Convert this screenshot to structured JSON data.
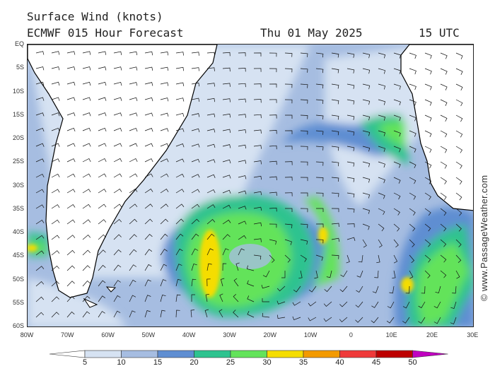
{
  "header": {
    "title": "Surface Wind (knots)",
    "model": "ECMWF 015 Hour Forecast",
    "date": "Thu 01 May 2025",
    "time": "15 UTC"
  },
  "credit": "© www.PassageWeather.com",
  "map": {
    "lat_labels": [
      "EQ",
      "5S",
      "10S",
      "15S",
      "20S",
      "25S",
      "30S",
      "35S",
      "40S",
      "45S",
      "50S",
      "55S",
      "60S"
    ],
    "lon_labels": [
      "80W",
      "70W",
      "60W",
      "50W",
      "40W",
      "30W",
      "20W",
      "10W",
      "0",
      "10E",
      "20E",
      "30E"
    ],
    "region": "South Atlantic Ocean",
    "land_color": "#ffffff",
    "coastline_color": "#000000",
    "barb_color": "#111111"
  },
  "colorbar": {
    "labels": [
      "5",
      "10",
      "15",
      "20",
      "25",
      "30",
      "35",
      "40",
      "45",
      "50"
    ],
    "colors": [
      "#ffffff",
      "#d6e2f2",
      "#a6bde1",
      "#5f8ed2",
      "#2ec38f",
      "#63e35a",
      "#f5dd00",
      "#f39a00",
      "#ef3a3a",
      "#bd0000",
      "#c000c0"
    ]
  }
}
